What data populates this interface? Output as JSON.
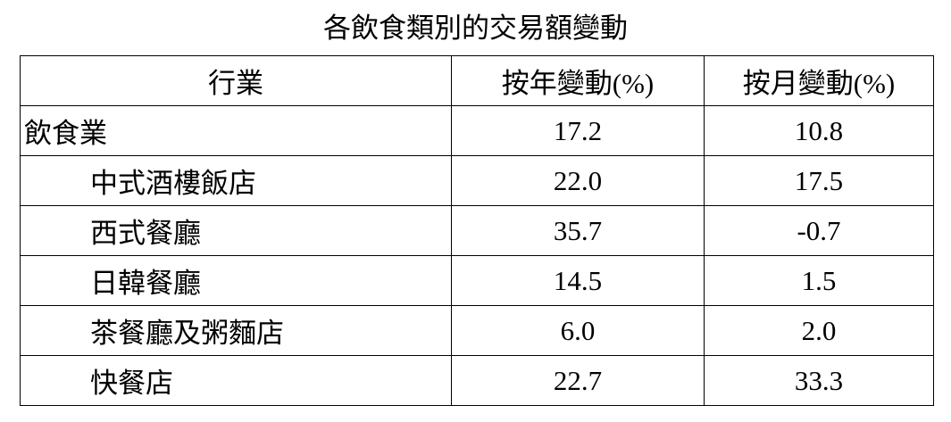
{
  "title": "各飲食類別的交易額變動",
  "table": {
    "header": [
      "行業",
      "按年變動(%)",
      "按月變動(%)"
    ],
    "rows": [
      [
        "飲食業",
        "17.2",
        "10.8"
      ],
      [
        "中式酒樓飯店",
        "22.0",
        "17.5"
      ],
      [
        "西式餐廳",
        "35.7",
        "-0.7"
      ],
      [
        "日韓餐廳",
        "14.5",
        "1.5"
      ],
      [
        "茶餐廳及粥麵店",
        "6.0",
        "2.0"
      ],
      [
        "快餐店",
        "22.7",
        "33.3"
      ]
    ]
  }
}
